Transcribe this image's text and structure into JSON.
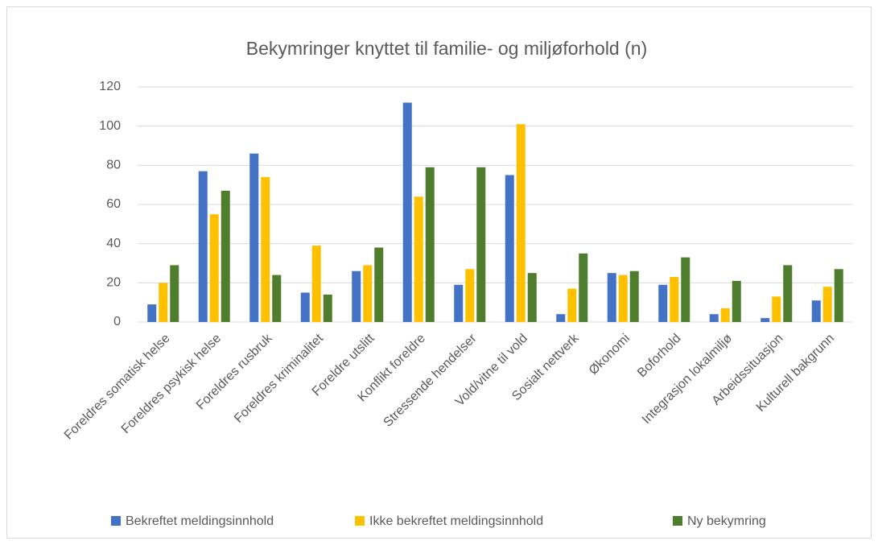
{
  "chart_data": {
    "type": "bar",
    "title": "Bekymringer knyttet til familie- og miljøforhold (n)",
    "categories": [
      "Foreldres somatisk helse",
      "Foreldres psykisk helse",
      "Foreldres rusbruk",
      "Foreldres kriminalitet",
      "Foreldre utslitt",
      "Konflikt foreldre",
      "Stressende hendelser",
      "Vold/vitne til vold",
      "Sosialt nettverk",
      "Økonomi",
      "Boforhold",
      "Integrasjon lokalmiljø",
      "Arbeidssituasjon",
      "Kulturell bakgrunn"
    ],
    "series": [
      {
        "name": "Bekreftet meldingsinnhold",
        "color": "#4472c4",
        "values": [
          9,
          77,
          86,
          15,
          26,
          112,
          19,
          75,
          4,
          25,
          19,
          4,
          2,
          11
        ]
      },
      {
        "name": "Ikke bekreftet meldingsinnhold",
        "color": "#ffc000",
        "values": [
          20,
          55,
          74,
          39,
          29,
          64,
          27,
          101,
          17,
          24,
          23,
          7,
          13,
          18
        ]
      },
      {
        "name": "Ny bekymring",
        "color": "#4e7d2e",
        "values": [
          29,
          67,
          24,
          14,
          38,
          79,
          79,
          25,
          35,
          26,
          33,
          21,
          29,
          27
        ]
      }
    ],
    "ylim": [
      0,
      120
    ],
    "yticks": [
      0,
      20,
      40,
      60,
      80,
      100,
      120
    ],
    "grid": true,
    "legend": "bottom"
  }
}
